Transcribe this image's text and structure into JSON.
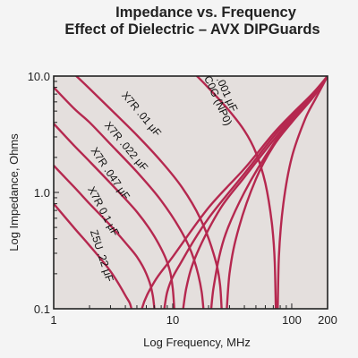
{
  "chart_data": {
    "type": "line",
    "title": "Impedance vs. Frequency",
    "subtitle": "Effect of Dielectric – AVX DIPGuards",
    "xlabel": "Log Frequency, MHz",
    "ylabel": "Log Impedance, Ohms",
    "x_scale": "log",
    "y_scale": "log",
    "xlim": [
      1,
      200
    ],
    "ylim": [
      0.1,
      10.0
    ],
    "x_ticks": [
      1,
      10,
      100,
      200
    ],
    "x_tick_labels": [
      "1",
      "10",
      "100",
      "200"
    ],
    "y_ticks": [
      0.1,
      1.0,
      10.0
    ],
    "y_tick_labels": [
      "0.1",
      "1.0",
      "10.0"
    ],
    "grid": false,
    "legend": "inline labels",
    "colors": {
      "curve": "#b5284f",
      "plot_bg": "#e4dfdd",
      "axis": "#222222"
    },
    "series": [
      {
        "name": "Z5U .22 μF",
        "resonance_mhz": 5.0,
        "x": [
          1,
          1.5,
          2,
          3,
          4,
          4.5,
          5,
          5.5,
          7,
          10,
          20,
          40,
          70,
          100,
          150,
          200
        ],
        "y": [
          0.8,
          0.49,
          0.35,
          0.21,
          0.13,
          0.1,
          0.05,
          0.1,
          0.17,
          0.28,
          0.74,
          1.6,
          3.2,
          4.7,
          7.1,
          10.0
        ]
      },
      {
        "name": "X7R 0.1 μF",
        "resonance_mhz": 7.7,
        "x": [
          1,
          1.5,
          2,
          3,
          4,
          5,
          6,
          6.8,
          7.7,
          9,
          12,
          20,
          40,
          70,
          100,
          150,
          200
        ],
        "y": [
          1.7,
          1.1,
          0.8,
          0.52,
          0.37,
          0.28,
          0.2,
          0.13,
          0.05,
          0.14,
          0.26,
          0.6,
          1.45,
          3.0,
          4.5,
          7.0,
          10.0
        ]
      },
      {
        "name": "X7R .047 μF",
        "resonance_mhz": 11.0,
        "x": [
          1,
          1.5,
          2,
          3,
          5,
          7,
          9,
          10,
          11,
          13,
          16,
          25,
          40,
          70,
          100,
          150,
          200
        ],
        "y": [
          3.9,
          2.5,
          1.85,
          1.2,
          0.68,
          0.42,
          0.25,
          0.15,
          0.05,
          0.15,
          0.3,
          0.72,
          1.35,
          2.8,
          4.3,
          6.8,
          10.0
        ]
      },
      {
        "name": "X7R .022 μF",
        "resonance_mhz": 19.5,
        "x": [
          1,
          1.5,
          2,
          3,
          5,
          8,
          12,
          15,
          17.5,
          19.5,
          22,
          27,
          40,
          70,
          100,
          150,
          200
        ],
        "y": [
          8.0,
          5.2,
          4.0,
          2.6,
          1.5,
          0.85,
          0.45,
          0.27,
          0.14,
          0.05,
          0.15,
          0.4,
          1.0,
          2.6,
          4.1,
          6.6,
          10.0
        ]
      },
      {
        "name": "X7R .01 μF",
        "resonance_mhz": 27.0,
        "x": [
          1.55,
          2,
          3,
          5,
          8,
          12,
          17,
          22,
          25,
          27,
          30,
          36,
          50,
          70,
          100,
          150,
          200
        ],
        "y": [
          10.0,
          7.8,
          5.2,
          3.1,
          1.85,
          1.1,
          0.6,
          0.3,
          0.16,
          0.05,
          0.2,
          0.5,
          1.3,
          2.5,
          4.0,
          6.5,
          10.0
        ]
      },
      {
        "name": "C0G (NP0) .001 μF",
        "resonance_mhz": 75.0,
        "x": [
          16,
          20,
          30,
          40,
          50,
          60,
          68,
          72,
          75,
          78,
          85,
          100,
          130,
          160,
          200
        ],
        "y": [
          10.0,
          7.9,
          5.0,
          3.4,
          2.2,
          1.2,
          0.55,
          0.25,
          0.05,
          0.28,
          0.8,
          2.0,
          4.3,
          6.5,
          10.0
        ]
      }
    ],
    "annotations": [
      {
        "text": "X7R .01 μF",
        "series": 4
      },
      {
        "text": "X7R .022 μF",
        "series": 3
      },
      {
        "text": "X7R .047 μF",
        "series": 2
      },
      {
        "text": "X7R 0.1 μF",
        "series": 1
      },
      {
        "text": "Z5U .22 μF",
        "series": 0
      },
      {
        "text": "C0G (NP0)",
        "series": 5
      },
      {
        "text": ".001 μF",
        "series": 5
      }
    ]
  }
}
